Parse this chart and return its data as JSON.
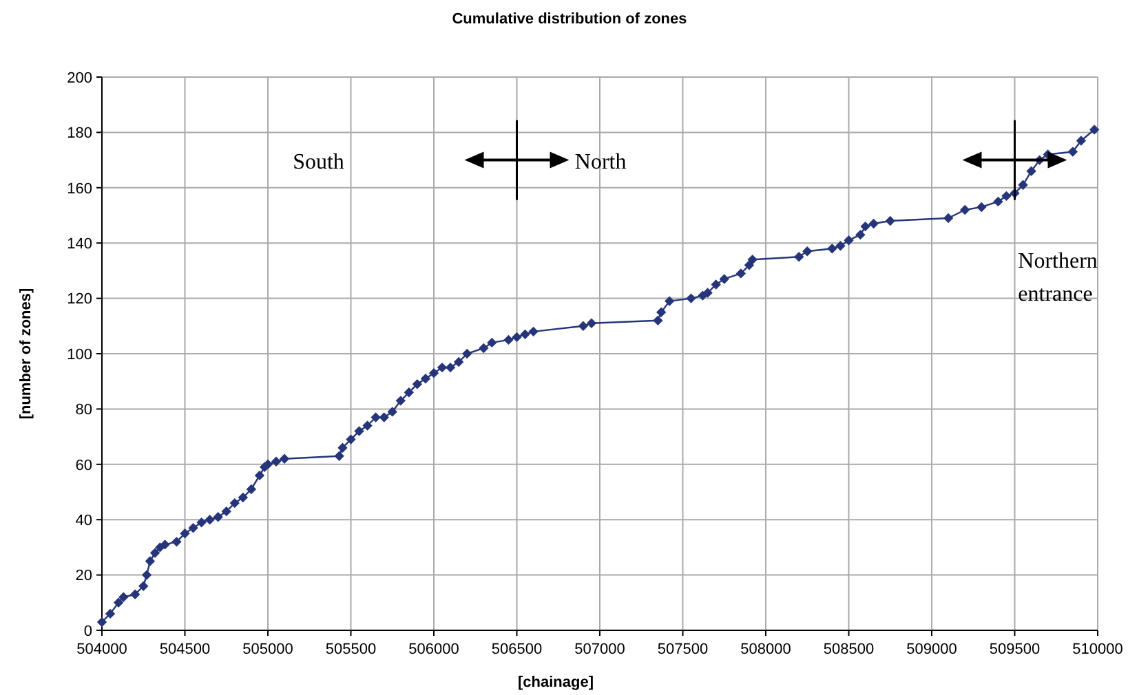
{
  "chart_data": {
    "type": "line",
    "title": "Cumulative distribution of zones",
    "xlabel": "[chainage]",
    "ylabel": "[number of zones]",
    "x": [
      504000,
      504050,
      504100,
      504130,
      504200,
      504250,
      504270,
      504290,
      504320,
      504350,
      504380,
      504450,
      504500,
      504550,
      504600,
      504650,
      504700,
      504750,
      504800,
      504850,
      504900,
      504950,
      504980,
      505000,
      505050,
      505100,
      505430,
      505450,
      505500,
      505550,
      505600,
      505650,
      505700,
      505750,
      505800,
      505850,
      505900,
      505950,
      506000,
      506050,
      506100,
      506150,
      506200,
      506300,
      506350,
      506450,
      506500,
      506550,
      506600,
      506900,
      506950,
      507350,
      507370,
      507420,
      507550,
      507620,
      507650,
      507700,
      507750,
      507850,
      507900,
      507920,
      508200,
      508250,
      508400,
      508450,
      508500,
      508570,
      508600,
      508650,
      508750,
      509100,
      509200,
      509300,
      509400,
      509450,
      509500,
      509550,
      509600,
      509650,
      509700,
      509850,
      509900,
      509980
    ],
    "series": [
      {
        "color": "#26357a",
        "values": [
          3,
          6,
          10,
          12,
          13,
          16,
          20,
          25,
          28,
          30,
          31,
          32,
          35,
          37,
          39,
          40,
          41,
          43,
          46,
          48,
          51,
          56,
          59,
          60,
          61,
          62,
          63,
          66,
          69,
          72,
          74,
          77,
          77,
          79,
          83,
          86,
          89,
          91,
          93,
          95,
          95,
          97,
          100,
          102,
          104,
          105,
          106,
          107,
          108,
          110,
          111,
          112,
          115,
          119,
          120,
          121,
          122,
          125,
          127,
          129,
          132,
          134,
          135,
          137,
          138,
          139,
          141,
          143,
          146,
          147,
          148,
          149,
          152,
          153,
          155,
          157,
          158,
          161,
          166,
          170,
          172,
          173,
          177,
          181
        ]
      }
    ],
    "xlim": [
      504000,
      510000
    ],
    "xticks": [
      504000,
      504500,
      505000,
      505500,
      506000,
      506500,
      507000,
      507500,
      508000,
      508500,
      509000,
      509500,
      510000
    ],
    "ylim": [
      0,
      200
    ],
    "yticks": [
      0,
      20,
      40,
      60,
      80,
      100,
      120,
      140,
      160,
      180,
      200
    ],
    "grid": true,
    "marker": "diamond",
    "line_style": "solid",
    "annotations": [
      "South",
      "North",
      "Northern entrance"
    ]
  }
}
